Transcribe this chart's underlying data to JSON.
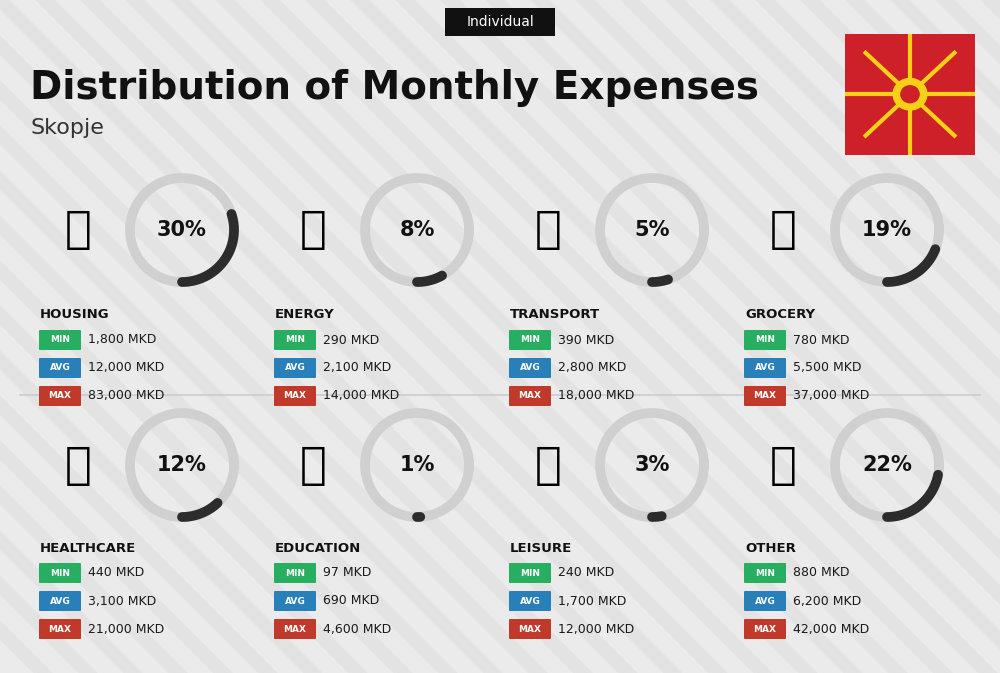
{
  "title": "Distribution of Monthly Expenses",
  "subtitle": "Individual",
  "city": "Skopje",
  "background_color": "#ebebeb",
  "stripe_color": "#e0e0e0",
  "categories": [
    {
      "name": "HOUSING",
      "pct": 30,
      "min": "1,800 MKD",
      "avg": "12,000 MKD",
      "max": "83,000 MKD",
      "row": 0,
      "col": 0
    },
    {
      "name": "ENERGY",
      "pct": 8,
      "min": "290 MKD",
      "avg": "2,100 MKD",
      "max": "14,000 MKD",
      "row": 0,
      "col": 1
    },
    {
      "name": "TRANSPORT",
      "pct": 5,
      "min": "390 MKD",
      "avg": "2,800 MKD",
      "max": "18,000 MKD",
      "row": 0,
      "col": 2
    },
    {
      "name": "GROCERY",
      "pct": 19,
      "min": "780 MKD",
      "avg": "5,500 MKD",
      "max": "37,000 MKD",
      "row": 0,
      "col": 3
    },
    {
      "name": "HEALTHCARE",
      "pct": 12,
      "min": "440 MKD",
      "avg": "3,100 MKD",
      "max": "21,000 MKD",
      "row": 1,
      "col": 0
    },
    {
      "name": "EDUCATION",
      "pct": 1,
      "min": "97 MKD",
      "avg": "690 MKD",
      "max": "4,600 MKD",
      "row": 1,
      "col": 1
    },
    {
      "name": "LEISURE",
      "pct": 3,
      "min": "240 MKD",
      "avg": "1,700 MKD",
      "max": "12,000 MKD",
      "row": 1,
      "col": 2
    },
    {
      "name": "OTHER",
      "pct": 22,
      "min": "880 MKD",
      "avg": "6,200 MKD",
      "max": "42,000 MKD",
      "row": 1,
      "col": 3
    }
  ],
  "min_color": "#27ae60",
  "avg_color": "#2980b9",
  "max_color": "#c0392b",
  "arc_fill_color": "#2c2c2c",
  "arc_bg_color": "#d0d0d0",
  "pct_fontsize": 15,
  "cat_fontsize": 9.5,
  "val_fontsize": 9,
  "badge_fontsize": 6.5,
  "title_fontsize": 28,
  "subtitle_fontsize": 10,
  "city_fontsize": 16
}
